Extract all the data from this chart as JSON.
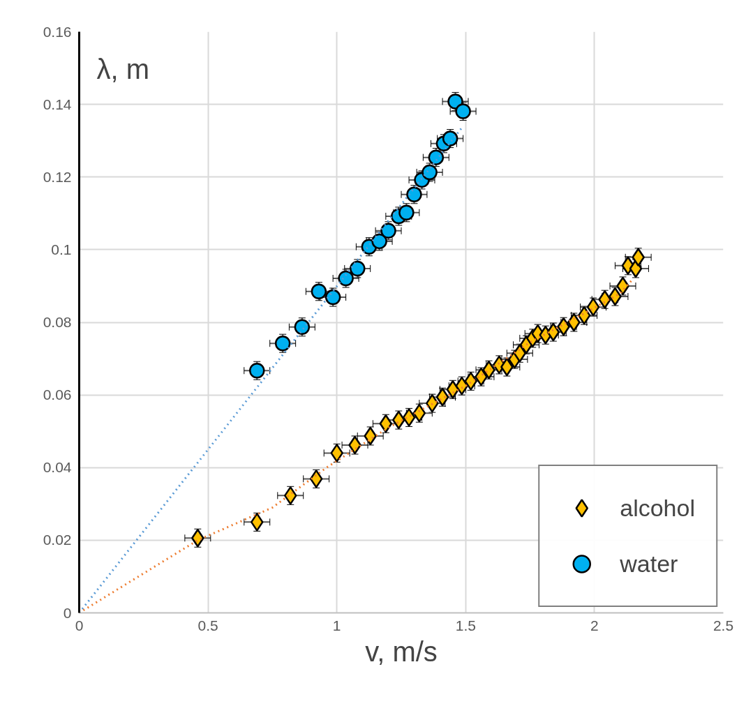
{
  "chart_data": {
    "type": "scatter",
    "ylabel": "λ, m",
    "xlabel": "v, m/s",
    "xlim": [
      0,
      2.5
    ],
    "ylim": [
      0,
      0.16
    ],
    "xticks": [
      0,
      0.5,
      1,
      1.5,
      2,
      2.5
    ],
    "yticks": [
      0,
      0.02,
      0.04,
      0.06,
      0.08,
      0.1,
      0.12,
      0.14,
      0.16
    ],
    "grid": true,
    "legend": "bottom right",
    "series": [
      {
        "name": "alcohol",
        "color": "#ffc000",
        "marker": "diamond",
        "x": [
          0.46,
          0.69,
          0.82,
          0.92,
          1.0,
          1.07,
          1.13,
          1.19,
          1.24,
          1.28,
          1.32,
          1.37,
          1.41,
          1.45,
          1.485,
          1.52,
          1.56,
          1.59,
          1.63,
          1.66,
          1.69,
          1.71,
          1.735,
          1.76,
          1.78,
          1.81,
          1.84,
          1.88,
          1.92,
          1.96,
          1.995,
          2.04,
          2.08,
          2.11,
          2.13,
          2.16,
          2.17
        ],
        "values": [
          0.0206,
          0.025,
          0.0323,
          0.0369,
          0.044,
          0.0462,
          0.0487,
          0.0521,
          0.0531,
          0.0538,
          0.055,
          0.0577,
          0.0594,
          0.0615,
          0.0625,
          0.0638,
          0.065,
          0.0669,
          0.0683,
          0.0677,
          0.0698,
          0.0715,
          0.0738,
          0.0756,
          0.0769,
          0.0765,
          0.0773,
          0.0788,
          0.08,
          0.0819,
          0.0842,
          0.0863,
          0.0871,
          0.09,
          0.0956,
          0.0948,
          0.0979
        ],
        "errors": [
          0.0025,
          0.0025,
          0.0025,
          0.0025,
          0.0025,
          0.0025,
          0.0025,
          0.0025,
          0.0025,
          0.0025,
          0.0025,
          0.0025,
          0.0025,
          0.0025,
          0.0025,
          0.0025,
          0.0025,
          0.0025,
          0.0025,
          0.0025,
          0.0025,
          0.0025,
          0.0025,
          0.0025,
          0.0025,
          0.0025,
          0.0025,
          0.0025,
          0.0025,
          0.0025,
          0.0025,
          0.0025,
          0.0025,
          0.0025,
          0.0025,
          0.0025,
          0.0025
        ],
        "xerrors": [
          0.05,
          0.05,
          0.05,
          0.05,
          0.05,
          0.05,
          0.05,
          0.05,
          0.05,
          0.05,
          0.05,
          0.05,
          0.05,
          0.05,
          0.05,
          0.05,
          0.05,
          0.05,
          0.05,
          0.05,
          0.05,
          0.05,
          0.05,
          0.05,
          0.05,
          0.05,
          0.05,
          0.05,
          0.05,
          0.05,
          0.05,
          0.05,
          0.05,
          0.05,
          0.05,
          0.05,
          0.05
        ]
      },
      {
        "name": "water",
        "color": "#00b0f0",
        "marker": "circle",
        "x": [
          0.69,
          0.79,
          0.865,
          0.93,
          0.985,
          1.035,
          1.08,
          1.125,
          1.165,
          1.2,
          1.24,
          1.27,
          1.3,
          1.33,
          1.36,
          1.385,
          1.415,
          1.44,
          1.46,
          1.49
        ],
        "values": [
          0.0667,
          0.0742,
          0.0787,
          0.0885,
          0.0869,
          0.0921,
          0.0948,
          0.1008,
          0.1023,
          0.1052,
          0.1092,
          0.1102,
          0.1152,
          0.1192,
          0.1213,
          0.1254,
          0.1292,
          0.1306,
          0.1408,
          0.1381
        ],
        "errors": [
          0.0025,
          0.0025,
          0.0025,
          0.0025,
          0.0025,
          0.0025,
          0.0025,
          0.0025,
          0.0025,
          0.0025,
          0.0025,
          0.0025,
          0.0025,
          0.0025,
          0.0025,
          0.0025,
          0.0025,
          0.0025,
          0.0025,
          0.0025
        ],
        "xerrors": [
          0.05,
          0.05,
          0.05,
          0.05,
          0.05,
          0.05,
          0.05,
          0.05,
          0.05,
          0.05,
          0.05,
          0.05,
          0.05,
          0.05,
          0.05,
          0.05,
          0.05,
          0.05,
          0.05,
          0.05
        ]
      },
      {
        "type": "line",
        "color": "#5b9bd5",
        "line_style": "dotted",
        "marker": "none",
        "x": [
          0,
          1.49
        ],
        "values": [
          0,
          0.134
        ]
      },
      {
        "type": "line",
        "color": "#ed7d31",
        "line_style": "dotted",
        "marker": "none",
        "x": [
          0,
          0.46,
          0.75,
          0.96,
          1.2,
          1.5,
          1.75,
          2.0,
          2.1,
          2.15
        ],
        "values": [
          0,
          0.02,
          0.029,
          0.04,
          0.051,
          0.0625,
          0.0745,
          0.084,
          0.088,
          0.092
        ]
      }
    ]
  }
}
